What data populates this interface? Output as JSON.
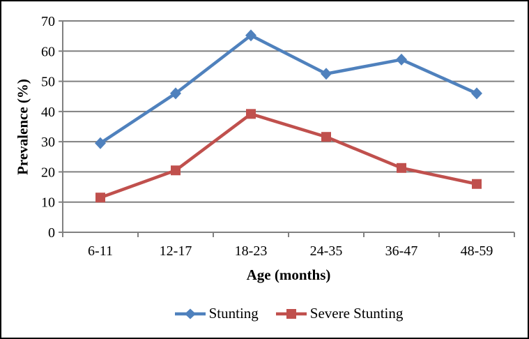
{
  "chart_data": {
    "type": "line",
    "title": "",
    "categories": [
      "6-11",
      "12-17",
      "18-23",
      "24-35",
      "36-47",
      "48-59"
    ],
    "series": [
      {
        "name": "Stunting",
        "marker": "diamond",
        "color": "#4F81BD",
        "values": [
          29.5,
          46.0,
          65.2,
          52.5,
          57.2,
          46.0
        ]
      },
      {
        "name": "Severe Stunting",
        "marker": "square",
        "color": "#C0504D",
        "values": [
          11.5,
          20.5,
          39.2,
          31.6,
          21.3,
          16.0
        ]
      }
    ],
    "xlabel": "Age (months)",
    "ylabel": "Prevalence (%)",
    "ylim": [
      0,
      70
    ],
    "yticks": [
      0,
      10,
      20,
      30,
      40,
      50,
      60,
      70
    ],
    "grid": true,
    "legend_position": "bottom",
    "colors": {
      "gridline": "#808080",
      "axis": "#808080",
      "text": "#000000",
      "frame_border": "#000000",
      "background": "#FFFFFF"
    }
  }
}
